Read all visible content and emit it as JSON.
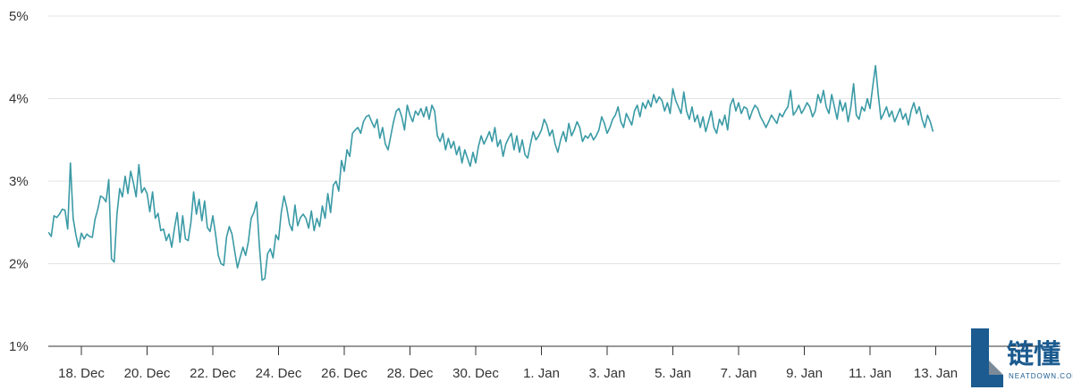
{
  "chart_data": {
    "type": "line",
    "series": [
      {
        "x_start": "2023-12-17",
        "x_step_hours": 2,
        "values": [
          2.38,
          2.33,
          2.58,
          2.56,
          2.6,
          2.66,
          2.65,
          2.42,
          3.22,
          2.55,
          2.35,
          2.2,
          2.37,
          2.3,
          2.36,
          2.33,
          2.32,
          2.54,
          2.66,
          2.82,
          2.8,
          2.75,
          3.02,
          2.06,
          2.02,
          2.6,
          2.91,
          2.81,
          3.06,
          2.85,
          3.12,
          2.98,
          2.81,
          3.2,
          2.86,
          2.92,
          2.85,
          2.63,
          2.87,
          2.55,
          2.61,
          2.4,
          2.42,
          2.28,
          2.36,
          2.2,
          2.43,
          2.62,
          2.26,
          2.58,
          2.3,
          2.28,
          2.5,
          2.87,
          2.6,
          2.78,
          2.52,
          2.76,
          2.44,
          2.39,
          2.58,
          2.36,
          2.1,
          2.0,
          1.98,
          2.32,
          2.45,
          2.36,
          2.15,
          1.95,
          2.08,
          2.2,
          2.1,
          2.27,
          2.55,
          2.62,
          2.75,
          2.22,
          1.8,
          1.82,
          2.12,
          2.18,
          2.07,
          2.35,
          2.29,
          2.62,
          2.82,
          2.68,
          2.48,
          2.4,
          2.71,
          2.46,
          2.56,
          2.6,
          2.55,
          2.43,
          2.64,
          2.4,
          2.55,
          2.45,
          2.7,
          2.55,
          2.85,
          2.62,
          2.95,
          3.0,
          2.88,
          3.25,
          3.12,
          3.38,
          3.3,
          3.58,
          3.62,
          3.65,
          3.58,
          3.72,
          3.78,
          3.8,
          3.72,
          3.65,
          3.75,
          3.52,
          3.65,
          3.45,
          3.38,
          3.55,
          3.72,
          3.85,
          3.88,
          3.78,
          3.62,
          3.92,
          3.8,
          3.72,
          3.85,
          3.8,
          3.88,
          3.78,
          3.9,
          3.75,
          3.92,
          3.85,
          3.55,
          3.48,
          3.58,
          3.38,
          3.52,
          3.4,
          3.48,
          3.32,
          3.42,
          3.22,
          3.38,
          3.28,
          3.18,
          3.35,
          3.22,
          3.42,
          3.55,
          3.45,
          3.52,
          3.6,
          3.48,
          3.65,
          3.42,
          3.5,
          3.3,
          3.45,
          3.52,
          3.58,
          3.38,
          3.55,
          3.35,
          3.5,
          3.32,
          3.28,
          3.45,
          3.6,
          3.5,
          3.55,
          3.62,
          3.75,
          3.68,
          3.55,
          3.62,
          3.45,
          3.35,
          3.5,
          3.6,
          3.48,
          3.7,
          3.55,
          3.62,
          3.72,
          3.65,
          3.48,
          3.55,
          3.52,
          3.58,
          3.5,
          3.55,
          3.62,
          3.78,
          3.7,
          3.58,
          3.65,
          3.75,
          3.8,
          3.9,
          3.72,
          3.65,
          3.82,
          3.75,
          3.68,
          3.85,
          3.92,
          3.78,
          3.95,
          3.88,
          3.98,
          3.9,
          4.05,
          3.95,
          4.02,
          3.98,
          3.85,
          3.95,
          3.82,
          4.12,
          3.98,
          3.9,
          3.82,
          4.08,
          3.85,
          3.75,
          3.9,
          3.72,
          3.8,
          3.65,
          3.78,
          3.6,
          3.72,
          3.85,
          3.65,
          3.58,
          3.75,
          3.68,
          3.8,
          3.62,
          3.92,
          4.0,
          3.85,
          3.95,
          3.82,
          3.9,
          3.88,
          3.75,
          3.85,
          3.92,
          3.88,
          3.78,
          3.72,
          3.65,
          3.72,
          3.8,
          3.75,
          3.7,
          3.82,
          3.78,
          3.85,
          3.9,
          4.1,
          3.8,
          3.85,
          3.92,
          3.82,
          3.88,
          3.95,
          3.9,
          3.78,
          3.85,
          4.05,
          3.95,
          4.1,
          3.9,
          3.82,
          4.05,
          3.9,
          3.75,
          3.98,
          3.85,
          3.95,
          3.72,
          3.9,
          4.18,
          3.8,
          3.75,
          3.9,
          3.85,
          4.0,
          3.88,
          4.15,
          4.4,
          4.05,
          3.75,
          3.82,
          3.9,
          3.78,
          3.85,
          3.72,
          3.8,
          3.88,
          3.75,
          3.82,
          3.68,
          3.85,
          3.95,
          3.82,
          3.9,
          3.75,
          3.65,
          3.8,
          3.72,
          3.6
        ]
      }
    ],
    "x_tick_labels": [
      "18. Dec",
      "20. Dec",
      "22. Dec",
      "24. Dec",
      "26. Dec",
      "28. Dec",
      "30. Dec",
      "1. Jan",
      "3. Jan",
      "5. Jan",
      "7. Jan",
      "9. Jan",
      "11. Jan",
      "13. Jan"
    ],
    "y_tick_labels": [
      "1%",
      "2%",
      "3%",
      "4%",
      "5%"
    ],
    "y_tick_values": [
      1,
      2,
      3,
      4,
      5
    ],
    "ylim": [
      1,
      5
    ],
    "grid": true,
    "line_color": "#3a9aa5",
    "grid_color": "#e4e4e4",
    "axis_color": "#333333"
  },
  "watermark": {
    "text": "链懂",
    "subtext": "NEATDOWN.COM",
    "color": "#1b5b8f"
  }
}
